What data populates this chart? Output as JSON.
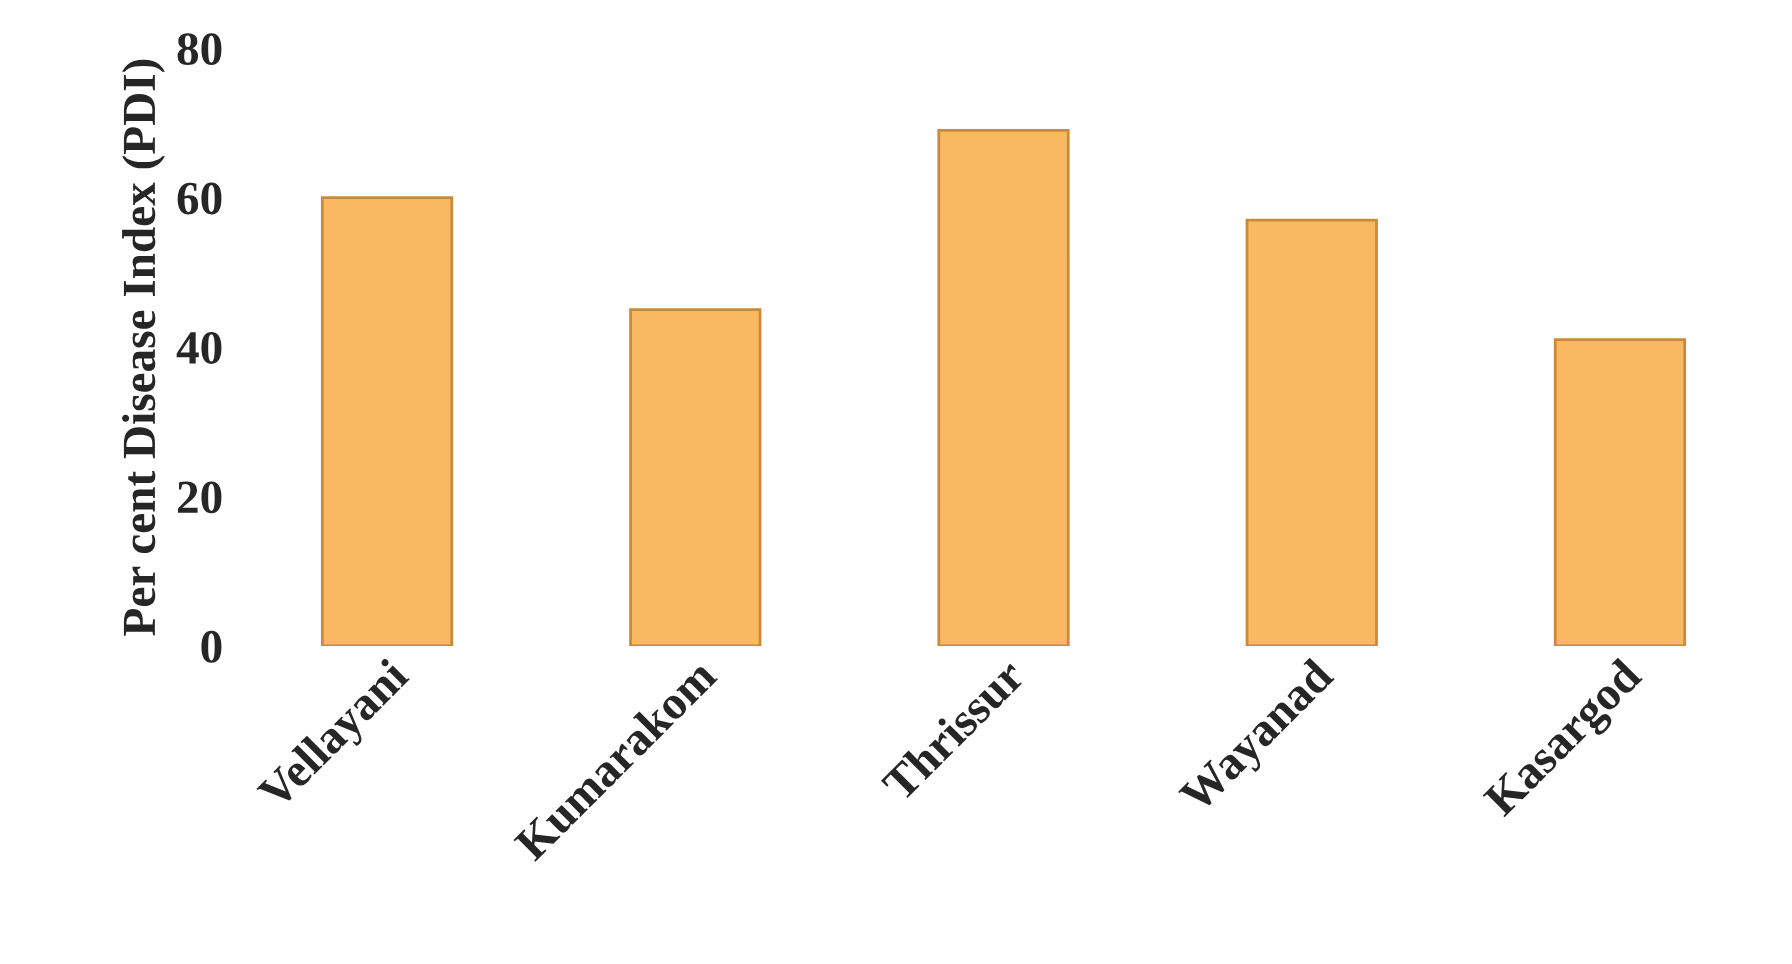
{
  "chart_data": {
    "type": "bar",
    "ylabel": "Per cent Disease Index (PDI)",
    "categories": [
      "Vellayani",
      "Kumarakom",
      "Thrissur",
      "Wayanad",
      "Kasargod"
    ],
    "values": [
      60,
      45,
      69,
      57,
      41
    ],
    "color": "#f9b862",
    "ylim": [
      0,
      80
    ],
    "yticks": [
      0,
      20,
      40,
      60,
      80
    ],
    "grid": false
  }
}
